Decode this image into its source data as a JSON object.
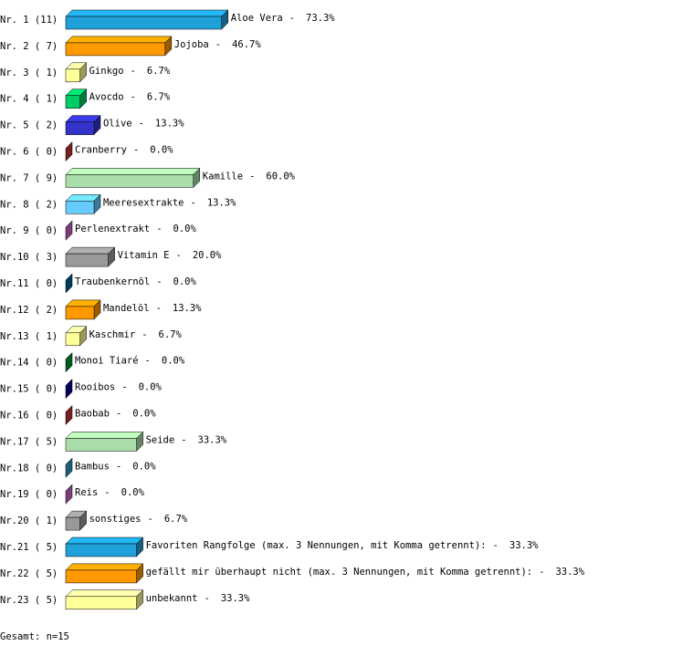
{
  "chart_data": {
    "type": "bar",
    "row_labels": [
      "Nr. 1 (11)",
      "Nr. 2 ( 7)",
      "Nr. 3 ( 1)",
      "Nr. 4 ( 1)",
      "Nr. 5 ( 2)",
      "Nr. 6 ( 0)",
      "Nr. 7 ( 9)",
      "Nr. 8 ( 2)",
      "Nr. 9 ( 0)",
      "Nr.10 ( 3)",
      "Nr.11 ( 0)",
      "Nr.12 ( 2)",
      "Nr.13 ( 1)",
      "Nr.14 ( 0)",
      "Nr.15 ( 0)",
      "Nr.16 ( 0)",
      "Nr.17 ( 5)",
      "Nr.18 ( 0)",
      "Nr.19 ( 0)",
      "Nr.20 ( 1)",
      "Nr.21 ( 5)",
      "Nr.22 ( 5)",
      "Nr.23 ( 5)"
    ],
    "categories": [
      "Aloe Vera",
      "Jojoba",
      "Ginkgo",
      "Avocdo",
      "Olive",
      "Cranberry",
      "Kamille",
      "Meeresextrakte",
      "Perlenextrakt",
      "Vitamin E",
      "Traubenkernöl",
      "Mandelöl",
      "Kaschmir",
      "Monoi Tiaré",
      "Rooibos",
      "Baobab",
      "Seide",
      "Bambus",
      "Reis",
      "sonstiges",
      "Favoriten Rangfolge (max. 3 Nennungen, mit Komma getrennt):",
      "gefällt mir überhaupt nicht (max. 3 Nennungen, mit Komma getrennt):",
      "unbekannt"
    ],
    "separator": "-",
    "values": [
      73.3,
      46.7,
      6.7,
      6.7,
      13.3,
      0.0,
      60.0,
      13.3,
      0.0,
      20.0,
      0.0,
      13.3,
      6.7,
      0.0,
      0.0,
      0.0,
      33.3,
      0.0,
      0.0,
      6.7,
      33.3,
      33.3,
      33.3
    ],
    "value_labels": [
      "73.3%",
      "46.7%",
      "6.7%",
      "6.7%",
      "13.3%",
      "0.0%",
      "60.0%",
      "13.3%",
      "0.0%",
      "20.0%",
      "0.0%",
      "13.3%",
      "6.7%",
      "0.0%",
      "0.0%",
      "0.0%",
      "33.3%",
      "0.0%",
      "0.0%",
      "6.7%",
      "33.3%",
      "33.3%",
      "33.3%"
    ],
    "colors": [
      "#1fa0d8",
      "#ff9900",
      "#ffff99",
      "#00cc66",
      "#3333cc",
      "#cc3333",
      "#a8dca8",
      "#66ccff",
      "#cc66cc",
      "#999999",
      "#006699",
      "#ff9900",
      "#ffff99",
      "#009933",
      "#000099",
      "#cc3333",
      "#a8dca8",
      "#3399cc",
      "#cc66cc",
      "#999999",
      "#1fa0d8",
      "#ff9900",
      "#ffff99"
    ],
    "footer": "Gesamt: n=15"
  }
}
